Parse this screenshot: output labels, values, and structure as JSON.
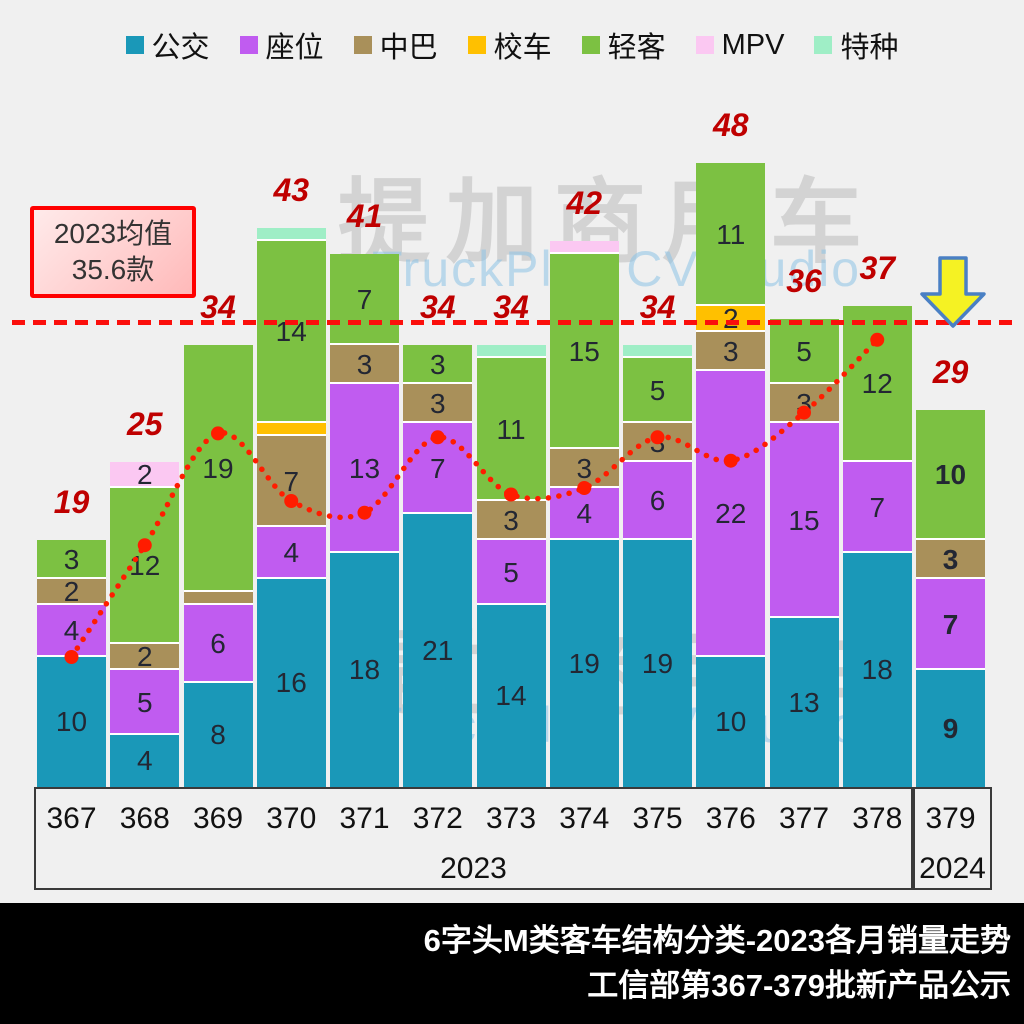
{
  "page": {
    "background": "#f0f0f0"
  },
  "annotation": {
    "line1": "2023均值",
    "line2": "35.6款"
  },
  "watermark": {
    "cn": "提加商用车",
    "en": "TruckPlus CV studio"
  },
  "footer": {
    "line1": "6字头M类客车结构分类-2023各月销量走势",
    "line2": "工信部第367-379批新产品公示"
  },
  "x_axis": {
    "groups": [
      {
        "label": "2023",
        "categories": "367-378"
      },
      {
        "label": "2024",
        "categories": "379"
      }
    ]
  },
  "chart_data": {
    "type": "bar",
    "stacked": true,
    "title": "6字头M类客车结构分类-2023各月销量走势",
    "source": "工信部第367-379批新产品公示",
    "legend_position": "top",
    "grid": false,
    "ylim": [
      0,
      48
    ],
    "value_label_min": 2,
    "categories": [
      "367",
      "368",
      "369",
      "370",
      "371",
      "372",
      "373",
      "374",
      "375",
      "376",
      "377",
      "378",
      "379"
    ],
    "series": [
      {
        "name": "公交",
        "key": "bus",
        "color": "#1a98b8",
        "values": [
          10,
          4,
          8,
          16,
          18,
          21,
          14,
          19,
          19,
          10,
          13,
          18,
          9
        ]
      },
      {
        "name": "座位",
        "key": "seat",
        "color": "#c05cf0",
        "values": [
          4,
          5,
          6,
          4,
          13,
          7,
          5,
          4,
          6,
          22,
          15,
          7,
          7
        ]
      },
      {
        "name": "中巴",
        "key": "midibus",
        "color": "#a9905a",
        "values": [
          2,
          2,
          1,
          7,
          3,
          3,
          3,
          3,
          3,
          3,
          3,
          0,
          3
        ]
      },
      {
        "name": "校车",
        "key": "schoolbus",
        "color": "#ffc000",
        "values": [
          0,
          0,
          0,
          1,
          0,
          0,
          0,
          0,
          0,
          2,
          0,
          0,
          0
        ]
      },
      {
        "name": "轻客",
        "key": "lightvan",
        "color": "#7cc142",
        "values": [
          3,
          12,
          19,
          14,
          7,
          3,
          11,
          15,
          5,
          11,
          5,
          12,
          10
        ]
      },
      {
        "name": "MPV",
        "key": "mpv",
        "color": "#fbc8f2",
        "values": [
          0,
          2,
          0,
          0,
          0,
          0,
          0,
          1,
          0,
          0,
          0,
          0,
          0
        ]
      },
      {
        "name": "特种",
        "key": "special",
        "color": "#9feec6",
        "values": [
          0,
          0,
          0,
          1,
          0,
          0,
          1,
          0,
          1,
          0,
          0,
          0,
          0
        ]
      }
    ],
    "totals": [
      19,
      25,
      34,
      43,
      41,
      34,
      34,
      42,
      34,
      48,
      36,
      37,
      29
    ],
    "totals_color": "#bf0000",
    "average_line": {
      "label": "2023均值 35.6款",
      "value": 35.6,
      "color": "#ff0000"
    },
    "trend": {
      "color": "#ff1c00",
      "values": [
        10.0,
        18.6,
        27.2,
        22.0,
        21.1,
        26.9,
        22.5,
        23.0,
        26.9,
        25.1,
        28.8,
        34.4
      ]
    }
  }
}
